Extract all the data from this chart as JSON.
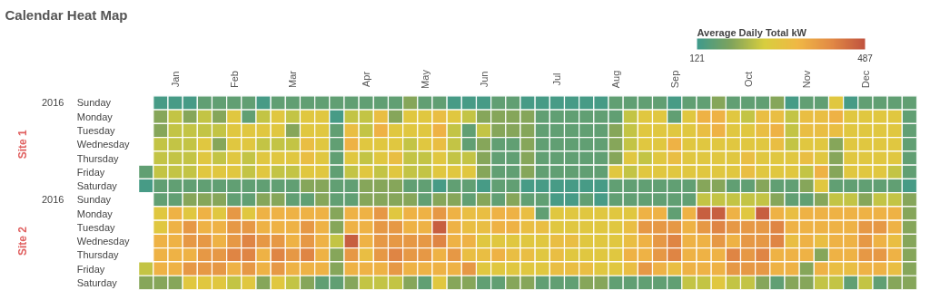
{
  "chart_data": {
    "type": "heatmap",
    "title": "Calendar Heat Map",
    "clabel": "Average Daily Total kW",
    "clim": [
      121,
      487
    ],
    "cticks": [
      121,
      487
    ],
    "annotations": [
      "Site 1",
      "Site 2",
      "2016",
      "2016"
    ],
    "categories": [
      null,
      null,
      "Jan",
      null,
      null,
      null,
      "Feb",
      null,
      null,
      null,
      "Mar",
      null,
      null,
      null,
      null,
      "Apr",
      null,
      null,
      null,
      "May",
      null,
      null,
      null,
      "Jun",
      null,
      null,
      null,
      null,
      "Jul",
      null,
      null,
      null,
      "Aug",
      null,
      null,
      null,
      "Sep",
      null,
      null,
      null,
      null,
      "Oct",
      null,
      null,
      null,
      "Nov",
      null,
      null,
      null,
      "Dec",
      null,
      null,
      null
    ],
    "y_categories": [
      "Sunday",
      "Monday",
      "Tuesday",
      "Wednesday",
      "Thursday",
      "Friday",
      "Saturday",
      "Sunday",
      "Monday",
      "Tuesday",
      "Wednesday",
      "Thursday",
      "Friday",
      "Saturday"
    ],
    "cells": [
      [
        null,
        130,
        130,
        130,
        160,
        160,
        160,
        160,
        130,
        160,
        160,
        160,
        160,
        160,
        160,
        160,
        160,
        160,
        200,
        160,
        160,
        130,
        130,
        130,
        160,
        160,
        130,
        130,
        130,
        130,
        130,
        130,
        160,
        160,
        160,
        160,
        130,
        160,
        160,
        200,
        160,
        160,
        160,
        200,
        130,
        160,
        160,
        290,
        130,
        160,
        160,
        160,
        160
      ],
      [
        null,
        200,
        250,
        200,
        250,
        200,
        290,
        160,
        250,
        290,
        250,
        290,
        290,
        130,
        250,
        250,
        320,
        200,
        290,
        290,
        320,
        290,
        250,
        200,
        200,
        200,
        200,
        160,
        160,
        160,
        160,
        160,
        160,
        250,
        290,
        290,
        160,
        290,
        350,
        350,
        290,
        250,
        320,
        320,
        250,
        320,
        320,
        350,
        290,
        290,
        290,
        290,
        160
      ],
      [
        null,
        200,
        250,
        250,
        250,
        250,
        290,
        290,
        290,
        290,
        200,
        290,
        290,
        160,
        320,
        250,
        350,
        290,
        290,
        290,
        350,
        250,
        160,
        250,
        200,
        200,
        200,
        160,
        160,
        160,
        160,
        160,
        200,
        250,
        290,
        290,
        290,
        290,
        320,
        350,
        290,
        290,
        320,
        350,
        250,
        320,
        320,
        320,
        290,
        290,
        290,
        290,
        160
      ],
      [
        null,
        250,
        250,
        250,
        290,
        200,
        290,
        290,
        250,
        250,
        250,
        320,
        290,
        160,
        350,
        290,
        290,
        290,
        250,
        290,
        320,
        250,
        160,
        200,
        160,
        160,
        200,
        160,
        160,
        160,
        160,
        160,
        200,
        250,
        290,
        290,
        350,
        290,
        290,
        290,
        290,
        290,
        290,
        320,
        250,
        290,
        290,
        200,
        290,
        290,
        290,
        290,
        160
      ],
      [
        null,
        250,
        250,
        250,
        290,
        250,
        290,
        250,
        290,
        290,
        290,
        320,
        290,
        160,
        290,
        250,
        290,
        320,
        250,
        250,
        290,
        250,
        250,
        200,
        160,
        160,
        200,
        160,
        160,
        160,
        160,
        160,
        200,
        290,
        250,
        290,
        320,
        290,
        290,
        290,
        290,
        320,
        290,
        290,
        290,
        320,
        290,
        200,
        290,
        290,
        290,
        290,
        160
      ],
      [
        160,
        250,
        250,
        250,
        290,
        290,
        290,
        250,
        290,
        250,
        250,
        290,
        290,
        160,
        250,
        290,
        250,
        290,
        250,
        250,
        290,
        290,
        290,
        200,
        160,
        160,
        200,
        160,
        160,
        160,
        160,
        160,
        290,
        250,
        290,
        290,
        290,
        290,
        290,
        290,
        290,
        320,
        290,
        290,
        290,
        250,
        350,
        200,
        290,
        290,
        290,
        250,
        160
      ],
      [
        130,
        160,
        160,
        160,
        160,
        160,
        160,
        160,
        160,
        160,
        160,
        200,
        200,
        160,
        160,
        200,
        200,
        200,
        160,
        160,
        130,
        160,
        160,
        130,
        160,
        160,
        130,
        130,
        130,
        130,
        130,
        130,
        160,
        160,
        160,
        160,
        160,
        160,
        200,
        200,
        160,
        160,
        200,
        160,
        160,
        200,
        290,
        160,
        160,
        160,
        160,
        160,
        130
      ],
      [
        null,
        160,
        160,
        200,
        200,
        200,
        160,
        160,
        200,
        200,
        160,
        160,
        200,
        160,
        160,
        200,
        200,
        200,
        200,
        160,
        200,
        200,
        160,
        200,
        160,
        200,
        160,
        160,
        130,
        130,
        160,
        130,
        160,
        160,
        160,
        160,
        160,
        160,
        250,
        250,
        250,
        250,
        250,
        200,
        160,
        160,
        200,
        250,
        250,
        200,
        250,
        250,
        200
      ],
      [
        null,
        290,
        350,
        290,
        350,
        290,
        390,
        290,
        350,
        350,
        350,
        350,
        350,
        200,
        350,
        350,
        390,
        290,
        350,
        350,
        390,
        350,
        320,
        320,
        350,
        350,
        320,
        160,
        290,
        290,
        290,
        290,
        290,
        290,
        350,
        350,
        160,
        350,
        470,
        470,
        350,
        290,
        470,
        350,
        320,
        350,
        350,
        350,
        350,
        350,
        350,
        350,
        200
      ],
      [
        null,
        290,
        350,
        390,
        350,
        350,
        390,
        390,
        350,
        350,
        350,
        390,
        350,
        200,
        350,
        350,
        390,
        390,
        350,
        350,
        470,
        350,
        320,
        320,
        350,
        350,
        320,
        320,
        290,
        290,
        290,
        290,
        290,
        320,
        390,
        390,
        390,
        350,
        390,
        420,
        390,
        390,
        390,
        420,
        350,
        350,
        350,
        350,
        350,
        390,
        390,
        350,
        200
      ],
      [
        null,
        350,
        350,
        390,
        390,
        350,
        390,
        420,
        390,
        390,
        350,
        390,
        350,
        250,
        470,
        350,
        390,
        390,
        390,
        390,
        420,
        350,
        350,
        290,
        290,
        290,
        290,
        290,
        320,
        320,
        290,
        290,
        290,
        320,
        350,
        390,
        420,
        350,
        350,
        390,
        350,
        390,
        390,
        420,
        320,
        350,
        320,
        350,
        350,
        390,
        350,
        320,
        200
      ],
      [
        null,
        350,
        350,
        350,
        390,
        390,
        420,
        420,
        350,
        420,
        390,
        420,
        350,
        200,
        390,
        320,
        390,
        420,
        390,
        390,
        350,
        390,
        320,
        320,
        350,
        320,
        320,
        290,
        320,
        290,
        290,
        290,
        290,
        350,
        350,
        390,
        420,
        350,
        350,
        350,
        420,
        390,
        420,
        350,
        350,
        350,
        200,
        350,
        350,
        390,
        390,
        350,
        200
      ],
      [
        250,
        350,
        350,
        390,
        390,
        390,
        350,
        390,
        350,
        390,
        350,
        350,
        350,
        200,
        350,
        350,
        350,
        390,
        350,
        350,
        350,
        350,
        390,
        290,
        290,
        290,
        290,
        290,
        320,
        320,
        320,
        290,
        290,
        320,
        390,
        350,
        320,
        350,
        350,
        350,
        390,
        390,
        390,
        350,
        350,
        200,
        350,
        320,
        320,
        350,
        350,
        320,
        200
      ],
      [
        200,
        200,
        200,
        290,
        290,
        290,
        250,
        290,
        200,
        290,
        250,
        200,
        160,
        160,
        200,
        250,
        250,
        250,
        200,
        160,
        290,
        200,
        200,
        160,
        160,
        200,
        200,
        160,
        160,
        160,
        200,
        200,
        160,
        160,
        160,
        160,
        160,
        250,
        250,
        290,
        250,
        250,
        200,
        160,
        200,
        200,
        250,
        250,
        160,
        250,
        160,
        200,
        200
      ]
    ]
  }
}
